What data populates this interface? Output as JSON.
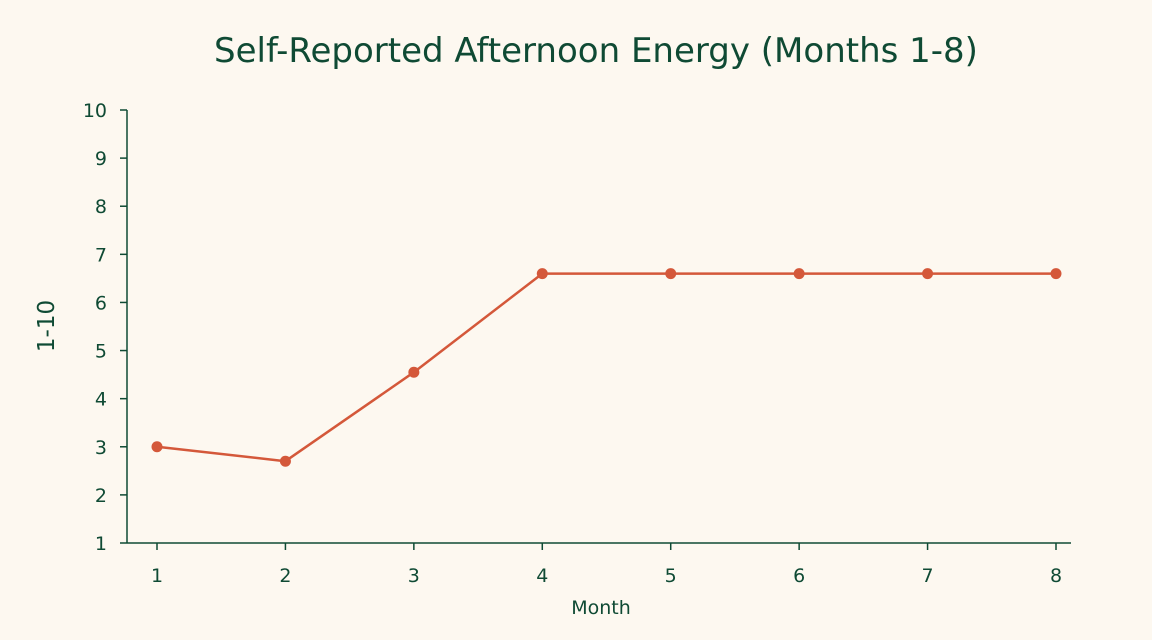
{
  "colors": {
    "background": "#fdf8f0",
    "text": "#0f4a34",
    "axis": "#0f4a34",
    "series": "#d4583a"
  },
  "chart_data": {
    "type": "line",
    "title": "Self-Reported Afternoon Energy (Months 1-8)",
    "xlabel": "Month",
    "ylabel": "1-10",
    "x": [
      1,
      2,
      3,
      4,
      5,
      6,
      7,
      8
    ],
    "x_tick_labels": [
      "1",
      "2",
      "3",
      "4",
      "5",
      "6",
      "7",
      "8"
    ],
    "y_ticks": [
      1,
      2,
      3,
      4,
      5,
      6,
      7,
      8,
      9,
      10
    ],
    "y_tick_labels": [
      "1",
      "2",
      "3",
      "4",
      "5",
      "6",
      "7",
      "8",
      "9",
      "10"
    ],
    "ylim": [
      1,
      10
    ],
    "xlim": [
      1,
      8
    ],
    "grid": false,
    "legend": "none",
    "series": [
      {
        "values": [
          3.0,
          2.7,
          4.55,
          6.6,
          6.6,
          6.6,
          6.6,
          6.6
        ]
      }
    ]
  }
}
